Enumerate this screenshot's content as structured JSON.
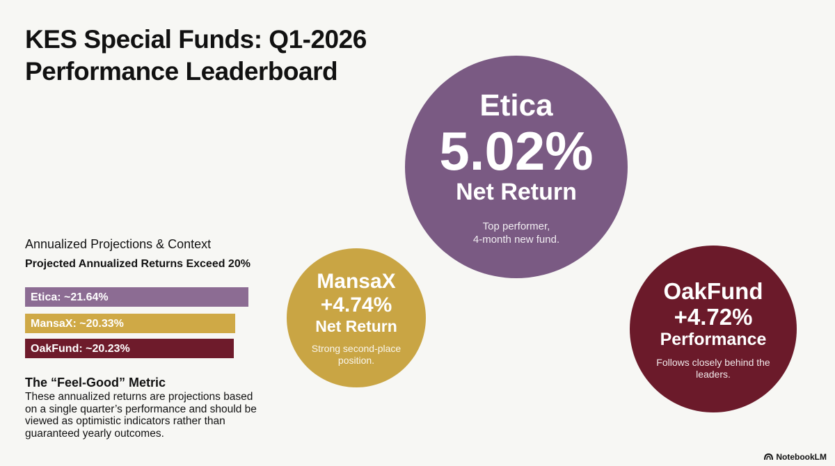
{
  "header": {
    "title_lines": [
      "KES Special Funds: Q1-2026",
      "Performance Leaderboard"
    ]
  },
  "circles": [
    {
      "name": "Etica",
      "figure": "5.02%",
      "metric": "Net Return",
      "note_lines": [
        "Top performer,",
        "4-month new fund."
      ],
      "color": "#7a5a83"
    },
    {
      "name": "MansaX",
      "figure": "+4.74%",
      "metric": "Net Return",
      "note_lines": [
        "Strong second-place",
        "position."
      ],
      "color": "#c9a544"
    },
    {
      "name": "OakFund",
      "figure": "+4.72%",
      "metric": "Performance",
      "note_lines": [
        "Follows closely behind the",
        "leaders."
      ],
      "color": "#6b1a2a"
    }
  ],
  "projections": {
    "heading": "Annualized Projections & Context",
    "subheading": "Projected Annualized Returns Exceed 20%",
    "bars": [
      {
        "label": "Etica: ~21.64%",
        "value": 21.64,
        "color": "#8c6c93"
      },
      {
        "label": "MansaX: ~20.33%",
        "value": 20.33,
        "color": "#cfa946"
      },
      {
        "label": "OakFund: ~20.23%",
        "value": 20.23,
        "color": "#6e1b2b"
      }
    ]
  },
  "note": {
    "title": "The “Feel-Good” Metric",
    "text": "These annualized returns are projections based on a single quarter’s performance and should be viewed as optimistic indicators rather than guaranteed yearly outcomes."
  },
  "footer": {
    "brand": "NotebookLM"
  }
}
